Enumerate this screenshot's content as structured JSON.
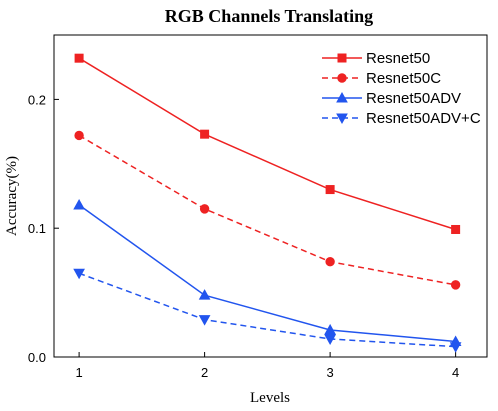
{
  "chart_data": {
    "type": "line",
    "title": "RGB Channels Translating",
    "xlabel": "Levels",
    "ylabel": "Accuracy(%)",
    "x": [
      1,
      2,
      3,
      4
    ],
    "xlim": [
      0.8,
      4.25
    ],
    "ylim": [
      0,
      0.25
    ],
    "xticks": [
      "1",
      "2",
      "3",
      "4"
    ],
    "yticks": [
      "0.0",
      "0.1",
      "0.2"
    ],
    "ytick_values": [
      0,
      0.1,
      0.2
    ],
    "grid": false,
    "legend_position": "top-right",
    "series": [
      {
        "name": "Resnet50",
        "values": [
          0.232,
          0.173,
          0.13,
          0.099
        ],
        "color": "#ee2222",
        "dash": "solid",
        "marker": "square"
      },
      {
        "name": "Resnet50C",
        "values": [
          0.172,
          0.115,
          0.074,
          0.056
        ],
        "color": "#ee2222",
        "dash": "dashed",
        "marker": "circle"
      },
      {
        "name": "Resnet50ADV",
        "values": [
          0.118,
          0.048,
          0.021,
          0.012
        ],
        "color": "#2255ee",
        "dash": "solid",
        "marker": "triangle-up"
      },
      {
        "name": "Resnet50ADV+C",
        "values": [
          0.065,
          0.029,
          0.014,
          0.008
        ],
        "color": "#2255ee",
        "dash": "dashed",
        "marker": "triangle-down"
      }
    ]
  }
}
